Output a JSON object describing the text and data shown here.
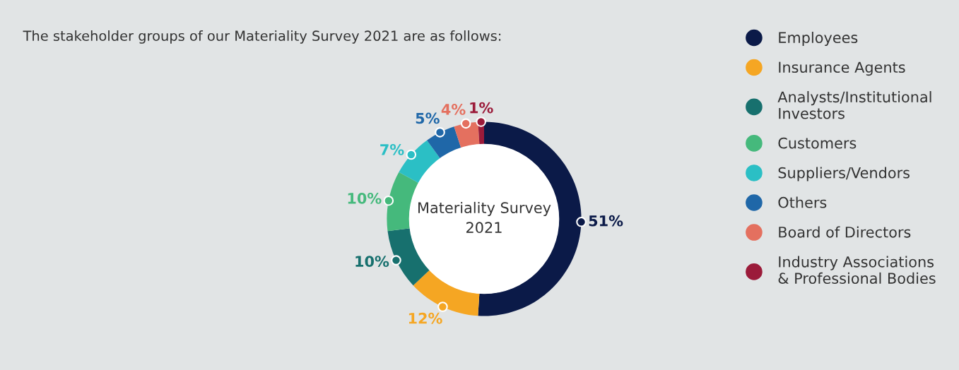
{
  "chart_data": {
    "type": "donut",
    "title": "The stakeholder groups of our Materiality Survey 2021 are as follows:",
    "annotations": [
      "Materiality Survey\n2021"
    ],
    "categories": [
      "Employees",
      "Insurance Agents",
      "Analysts/Institutional\nInvestors",
      "Customers",
      "Suppliers/Vendors",
      "Others",
      "Board of Directors",
      "Industry Associations\n& Professional Bodies"
    ],
    "values": [
      51,
      12,
      10,
      10,
      7,
      5,
      4,
      1
    ],
    "colors": [
      "#0b1a48",
      "#f5a623",
      "#17706e",
      "#45b97c",
      "#2bbfc5",
      "#1f67a8",
      "#e4705f",
      "#9b1b3a"
    ],
    "value_labels": [
      "51%",
      "12%",
      "10%",
      "10%",
      "7%",
      "5%",
      "4%",
      "1%"
    ],
    "legend": "right"
  }
}
